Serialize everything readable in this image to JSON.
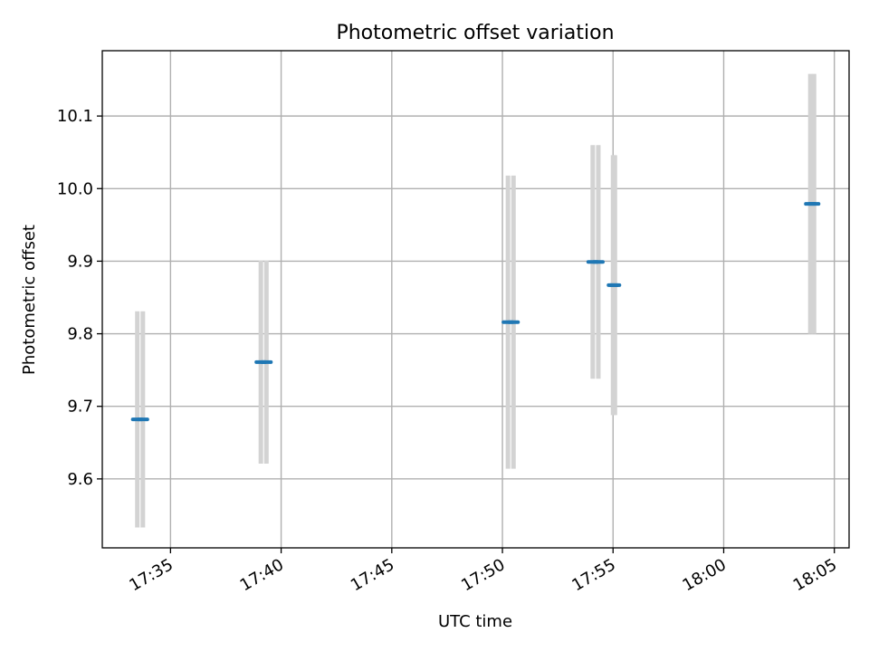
{
  "chart_data": {
    "type": "scatter",
    "title": "Photometric offset variation",
    "xlabel": "UTC time",
    "ylabel": "Photometric offset",
    "x_axis_type": "time",
    "x_ticks": [
      "17:35",
      "17:40",
      "17:45",
      "17:50",
      "17:55",
      "18:00",
      "18:05"
    ],
    "xlim": [
      "17:31:55",
      "18:05:40"
    ],
    "y_ticks": [
      9.6,
      9.7,
      9.8,
      9.9,
      10.0,
      10.1
    ],
    "y_tick_labels": [
      "9.6",
      "9.7",
      "9.8",
      "9.9",
      "10.0",
      "10.1"
    ],
    "ylim": [
      9.505,
      10.19
    ],
    "grid": true,
    "marker_color": "#1f77b4",
    "errorbar_color": "#d3d3d3",
    "series": [
      {
        "points": [
          {
            "x": "17:33:30",
            "y": 9.682,
            "yerr": 0.149
          },
          {
            "x": "17:33:45",
            "y": 9.682,
            "yerr": 0.149
          },
          {
            "x": "17:39:05",
            "y": 9.761,
            "yerr": 0.14
          },
          {
            "x": "17:39:20",
            "y": 9.761,
            "yerr": 0.14
          },
          {
            "x": "17:50:15",
            "y": 9.816,
            "yerr": 0.202
          },
          {
            "x": "17:50:30",
            "y": 9.816,
            "yerr": 0.202
          },
          {
            "x": "17:54:05",
            "y": 9.899,
            "yerr": 0.161
          },
          {
            "x": "17:54:20",
            "y": 9.899,
            "yerr": 0.161
          },
          {
            "x": "17:55:00",
            "y": 9.867,
            "yerr": 0.179
          },
          {
            "x": "17:55:05",
            "y": 9.867,
            "yerr": 0.179
          },
          {
            "x": "18:03:55",
            "y": 9.979,
            "yerr": 0.179
          },
          {
            "x": "18:04:05",
            "y": 9.979,
            "yerr": 0.179
          }
        ]
      }
    ]
  }
}
